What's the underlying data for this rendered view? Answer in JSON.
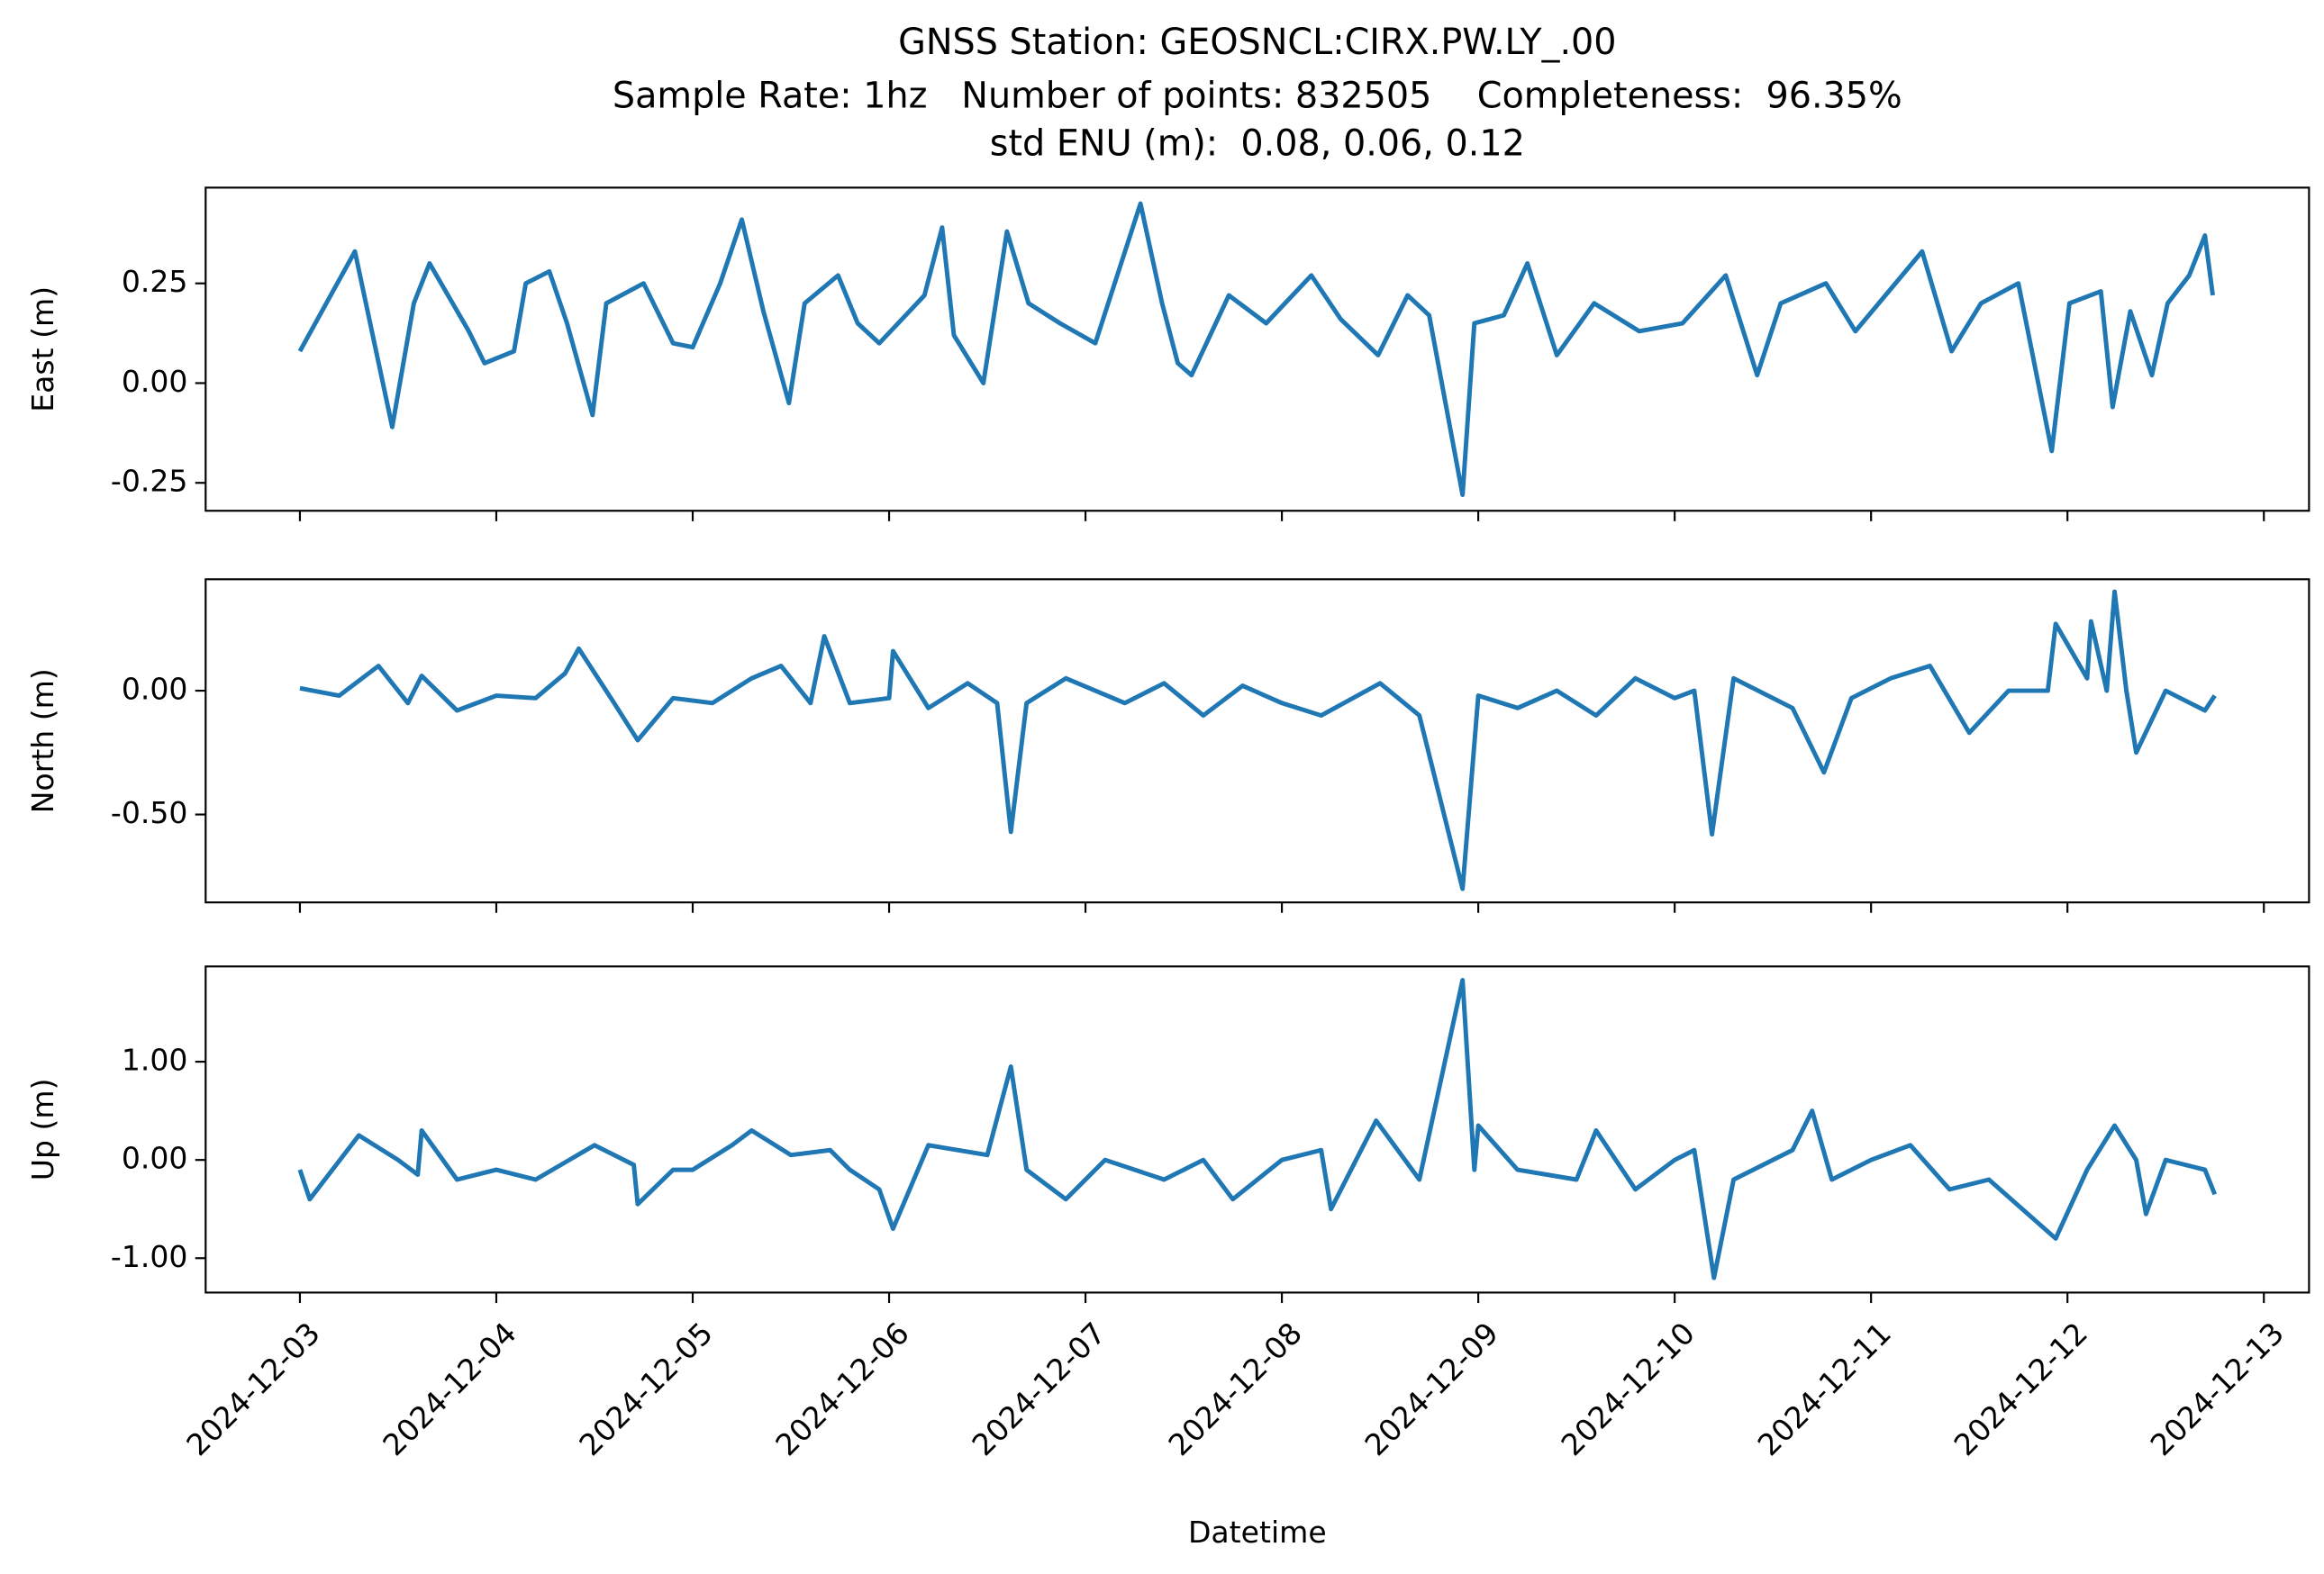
{
  "title": [
    "GNSS Station: GEOSNCL:CIRX.PW.LY_.00",
    "Sample Rate: 1hz   Number of points: 832505    Completeness:  96.35%",
    "std ENU (m):  0.08, 0.06, 0.12"
  ],
  "chart_data": [
    {
      "type": "line",
      "ylabel": "East (m)",
      "x": [
        0,
        0.28,
        0.47,
        0.58,
        0.66,
        0.86,
        0.94,
        1.09,
        1.15,
        1.27,
        1.36,
        1.49,
        1.56,
        1.75,
        1.9,
        2.0,
        2.14,
        2.25,
        2.36,
        2.49,
        2.57,
        2.74,
        2.84,
        2.95,
        3.18,
        3.27,
        3.33,
        3.48,
        3.6,
        3.71,
        3.87,
        4.05,
        4.28,
        4.39,
        4.47,
        4.54,
        4.73,
        4.92,
        5.15,
        5.3,
        5.49,
        5.64,
        5.75,
        5.92,
        5.98,
        6.13,
        6.25,
        6.4,
        6.59,
        6.82,
        7.04,
        7.26,
        7.42,
        7.54,
        7.77,
        7.92,
        8.26,
        8.41,
        8.56,
        8.75,
        8.92,
        9.01,
        9.17,
        9.23,
        9.32,
        9.43,
        9.51,
        9.62,
        9.7,
        9.74
      ],
      "series": [
        {
          "color": "#1f77b4",
          "values": [
            0.08,
            0.33,
            -0.11,
            0.2,
            0.3,
            0.13,
            0.05,
            0.08,
            0.25,
            0.28,
            0.15,
            -0.08,
            0.2,
            0.25,
            0.1,
            0.09,
            0.25,
            0.41,
            0.18,
            -0.05,
            0.2,
            0.27,
            0.15,
            0.1,
            0.22,
            0.39,
            0.12,
            0,
            0.38,
            0.2,
            0.15,
            0.1,
            0.45,
            0.2,
            0.05,
            0.02,
            0.22,
            0.15,
            0.27,
            0.16,
            0.07,
            0.22,
            0.17,
            -0.28,
            0.15,
            0.17,
            0.3,
            0.07,
            0.2,
            0.13,
            0.15,
            0.27,
            0.02,
            0.2,
            0.25,
            0.13,
            0.33,
            0.08,
            0.2,
            0.25,
            -0.17,
            0.2,
            0.23,
            -0.06,
            0.18,
            0.02,
            0.2,
            0.27,
            0.37,
            0.22
          ]
        }
      ],
      "xlim": [
        -0.48,
        10.23
      ],
      "ylim": [
        -0.32,
        0.49
      ],
      "xticks": [
        0,
        1,
        2,
        3,
        4,
        5,
        6,
        7,
        8,
        9,
        10
      ],
      "yticks": [
        0.25,
        {
          "value": 0,
          "label": "0.00"
        },
        -0.25
      ]
    },
    {
      "type": "line",
      "ylabel": "North (m)",
      "x": [
        0,
        0.2,
        0.4,
        0.55,
        0.62,
        0.8,
        1.0,
        1.2,
        1.35,
        1.42,
        1.6,
        1.72,
        1.9,
        2.1,
        2.3,
        2.45,
        2.6,
        2.67,
        2.8,
        3.0,
        3.02,
        3.2,
        3.4,
        3.55,
        3.62,
        3.7,
        3.9,
        4.2,
        4.4,
        4.6,
        4.8,
        5.0,
        5.2,
        5.5,
        5.7,
        5.92,
        6.0,
        6.2,
        6.4,
        6.6,
        6.8,
        7.0,
        7.1,
        7.19,
        7.3,
        7.6,
        7.76,
        7.9,
        8.1,
        8.3,
        8.5,
        8.7,
        8.9,
        8.94,
        9.1,
        9.12,
        9.2,
        9.24,
        9.3,
        9.35,
        9.5,
        9.7,
        9.75
      ],
      "series": [
        {
          "color": "#1f77b4",
          "values": [
            0.01,
            -0.02,
            0.1,
            -0.05,
            0.06,
            -0.08,
            -0.02,
            -0.03,
            0.07,
            0.17,
            -0.05,
            -0.2,
            -0.03,
            -0.05,
            0.05,
            0.1,
            -0.05,
            0.22,
            -0.05,
            -0.03,
            0.16,
            -0.07,
            0.03,
            -0.05,
            -0.57,
            -0.05,
            0.05,
            -0.05,
            0.03,
            -0.1,
            0.02,
            -0.05,
            -0.1,
            0.03,
            -0.1,
            -0.8,
            -0.02,
            -0.07,
            0,
            -0.1,
            0.05,
            -0.03,
            0,
            -0.58,
            0.05,
            -0.07,
            -0.33,
            -0.03,
            0.05,
            0.1,
            -0.17,
            0,
            0,
            0.27,
            0.05,
            0.28,
            0,
            0.4,
            0,
            -0.25,
            0,
            -0.08,
            -0.02
          ]
        }
      ],
      "xlim": [
        -0.48,
        10.23
      ],
      "ylim": [
        -0.855,
        0.45
      ],
      "xticks": [
        0,
        1,
        2,
        3,
        4,
        5,
        6,
        7,
        8,
        9,
        10
      ],
      "yticks": [
        {
          "value": 0,
          "label": "0.00"
        },
        {
          "value": -0.5,
          "label": "-0.50"
        }
      ]
    },
    {
      "type": "line",
      "ylabel": "Up (m)",
      "xlabel": "Datetime",
      "x": [
        0,
        0.05,
        0.3,
        0.5,
        0.6,
        0.62,
        0.8,
        1.0,
        1.2,
        1.5,
        1.7,
        1.72,
        1.9,
        2.0,
        2.2,
        2.3,
        2.5,
        2.7,
        2.8,
        2.95,
        3.02,
        3.2,
        3.5,
        3.62,
        3.7,
        3.9,
        4.1,
        4.4,
        4.6,
        4.75,
        5.0,
        5.2,
        5.25,
        5.48,
        5.7,
        5.92,
        5.98,
        6.0,
        6.2,
        6.5,
        6.6,
        6.8,
        7.0,
        7.1,
        7.2,
        7.3,
        7.6,
        7.7,
        7.8,
        8.0,
        8.2,
        8.4,
        8.6,
        8.94,
        9.1,
        9.24,
        9.35,
        9.4,
        9.5,
        9.7,
        9.75
      ],
      "series": [
        {
          "color": "#1f77b4",
          "values": [
            -0.1,
            -0.4,
            0.25,
            0,
            -0.15,
            0.3,
            -0.2,
            -0.1,
            -0.2,
            0.15,
            -0.05,
            -0.45,
            -0.1,
            -0.1,
            0.15,
            0.3,
            0.05,
            0.1,
            -0.1,
            -0.3,
            -0.7,
            0.15,
            0.05,
            0.95,
            -0.1,
            -0.4,
            0,
            -0.2,
            0,
            -0.4,
            0,
            0.1,
            -0.5,
            0.4,
            -0.2,
            1.83,
            -0.1,
            0.35,
            -0.1,
            -0.2,
            0.3,
            -0.3,
            0,
            0.1,
            -1.2,
            -0.2,
            0.1,
            0.5,
            -0.2,
            0,
            0.15,
            -0.3,
            -0.2,
            -0.8,
            -0.1,
            0.35,
            0,
            -0.55,
            0,
            -0.1,
            -0.35
          ]
        }
      ],
      "xlim": [
        -0.48,
        10.23
      ],
      "ylim": [
        -1.35,
        1.97
      ],
      "xticks": [
        {
          "value": 0,
          "label": "2024-12-03"
        },
        {
          "value": 1,
          "label": "2024-12-04"
        },
        {
          "value": 2,
          "label": "2024-12-05"
        },
        {
          "value": 3,
          "label": "2024-12-06"
        },
        {
          "value": 4,
          "label": "2024-12-07"
        },
        {
          "value": 5,
          "label": "2024-12-08"
        },
        {
          "value": 6,
          "label": "2024-12-09"
        },
        {
          "value": 7,
          "label": "2024-12-10"
        },
        {
          "value": 8,
          "label": "2024-12-11"
        },
        {
          "value": 9,
          "label": "2024-12-12"
        },
        {
          "value": 10,
          "label": "2024-12-13"
        }
      ],
      "yticks": [
        {
          "value": 1,
          "label": "1.00"
        },
        {
          "value": 0,
          "label": "0.00"
        },
        {
          "value": -1,
          "label": "-1.00"
        }
      ]
    }
  ]
}
